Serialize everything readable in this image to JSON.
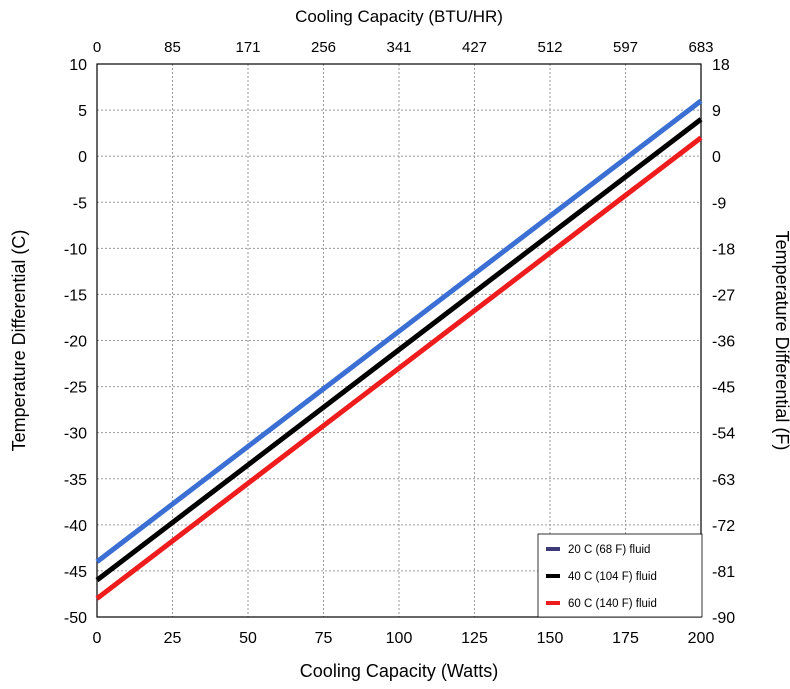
{
  "chart_data": {
    "type": "line",
    "xlabel": "Cooling Capacity (Watts)",
    "ylabel": "Temperature Differential (C)",
    "top_axis_label": "Cooling Capacity (BTU/HR)",
    "right_axis_label": "Temperature Differential (F)",
    "xlim": [
      0,
      200
    ],
    "ylim": [
      -50,
      10
    ],
    "x_ticks": [
      "0",
      "25",
      "50",
      "75",
      "100",
      "125",
      "150",
      "175",
      "200"
    ],
    "y_ticks": [
      "10",
      "5",
      "0",
      "-5",
      "-10",
      "-15",
      "-20",
      "-25",
      "-30",
      "-35",
      "-40",
      "-45",
      "-50"
    ],
    "top_ticks": [
      "0",
      "85",
      "171",
      "256",
      "341",
      "427",
      "512",
      "597",
      "683"
    ],
    "right_ticks": [
      "18",
      "9",
      "0",
      "-9",
      "-18",
      "-27",
      "-36",
      "-45",
      "-54",
      "-63",
      "-72",
      "-81",
      "-90"
    ],
    "grid": true,
    "legend_position": "bottom-right",
    "series": [
      {
        "name": "20 C (68 F) fluid",
        "color": "#3b6fd4",
        "legend_color": "#3d3a78",
        "x": [
          0,
          200
        ],
        "y": [
          -44,
          6
        ]
      },
      {
        "name": "40 C (104 F) fluid",
        "color": "#000000",
        "legend_color": "#000000",
        "x": [
          0,
          200
        ],
        "y": [
          -46,
          4
        ]
      },
      {
        "name": "60 C (140 F) fluid",
        "color": "#ee1c1c",
        "legend_color": "#ee1c1c",
        "x": [
          0,
          200
        ],
        "y": [
          -48,
          2
        ]
      }
    ]
  }
}
